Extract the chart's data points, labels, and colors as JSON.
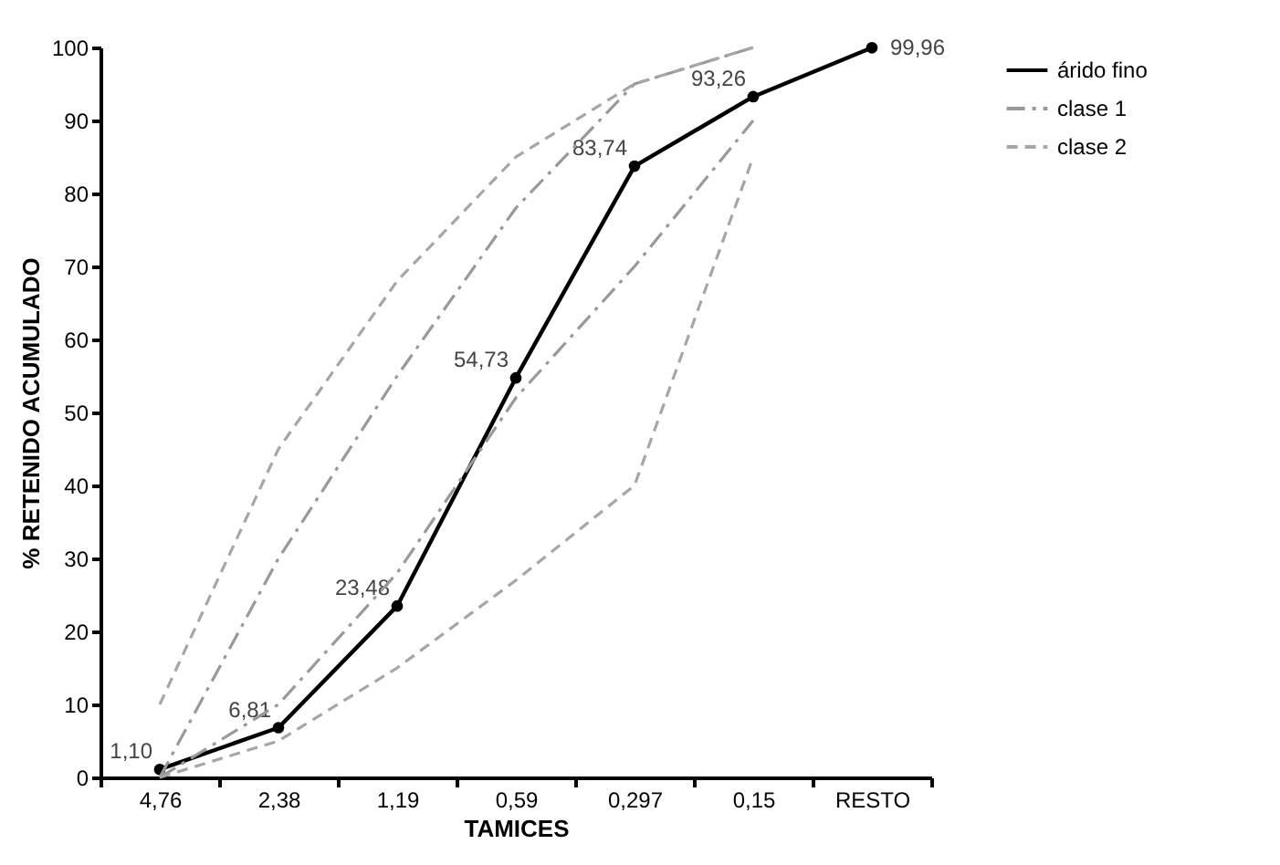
{
  "chart_data": {
    "type": "line",
    "xlabel": "TAMICES",
    "ylabel": "% RETENIDO ACUMULADO",
    "categories": [
      "4,76",
      "2,38",
      "1,19",
      "0,59",
      "0,297",
      "0,15",
      "RESTO"
    ],
    "ylim": [
      0,
      100
    ],
    "yticks": [
      0,
      10,
      20,
      30,
      40,
      50,
      60,
      70,
      80,
      90,
      100
    ],
    "grid": false,
    "legend": "right",
    "series": [
      {
        "name": "árido fino",
        "color": "#000000",
        "marker": "circle",
        "line_style": "solid",
        "values": [
          1.1,
          6.81,
          23.48,
          54.73,
          83.74,
          93.26,
          99.96
        ],
        "value_labels": [
          "1,10",
          "6,81",
          "23,48",
          "54,73",
          "83,74",
          "93,26",
          "99,96"
        ]
      },
      {
        "name": "clase 1",
        "color": "#999999",
        "marker": "none",
        "line_style": "dashdot",
        "values": [
          0,
          30,
          55,
          78,
          95,
          100,
          null
        ]
      },
      {
        "color": "#999999",
        "marker": "none",
        "line_style": "dashdot",
        "values": [
          0,
          10,
          28,
          52,
          70,
          90,
          null
        ]
      },
      {
        "name": "clase 2",
        "color": "#a6a6a6",
        "marker": "none",
        "line_style": "dashed",
        "values": [
          10,
          45,
          68,
          85,
          95,
          100,
          null
        ]
      },
      {
        "color": "#a6a6a6",
        "marker": "none",
        "line_style": "dashed",
        "values": [
          0,
          5,
          15,
          27,
          40,
          85,
          null
        ]
      }
    ]
  }
}
